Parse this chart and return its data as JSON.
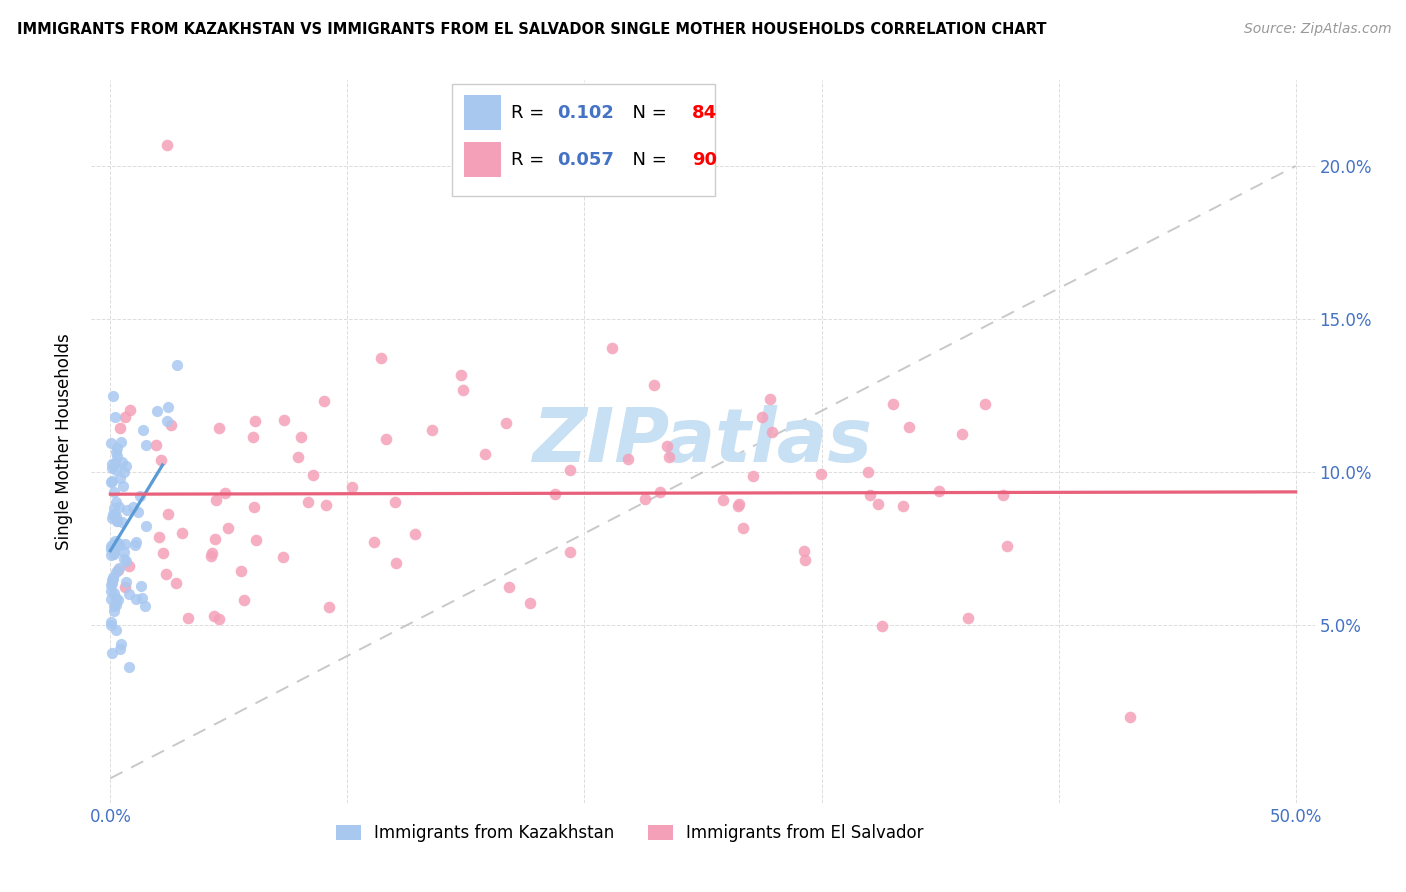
{
  "title": "IMMIGRANTS FROM KAZAKHSTAN VS IMMIGRANTS FROM EL SALVADOR SINGLE MOTHER HOUSEHOLDS CORRELATION CHART",
  "source": "Source: ZipAtlas.com",
  "ylabel": "Single Mother Households",
  "color_kaz": "#A8C8F0",
  "color_sal": "#F4A0B8",
  "color_kaz_line": "#5B9BD5",
  "color_sal_line": "#E8607A",
  "color_diag": "#BBBBBB",
  "color_tick": "#4472C4",
  "color_grid": "#DDDDDD",
  "watermark": "ZIPatlas",
  "watermark_color": "#C8E0F4",
  "r_kaz": 0.102,
  "n_kaz": 84,
  "r_sal": 0.057,
  "n_sal": 90,
  "y_ticks": [
    0.05,
    0.1,
    0.15,
    0.2
  ],
  "y_tick_labels": [
    "5.0%",
    "10.0%",
    "15.0%",
    "20.0%"
  ],
  "legend_label_kaz": "Immigrants from Kazakhstan",
  "legend_label_sal": "Immigrants from El Salvador",
  "legend_r_color": "#4472C4",
  "legend_n_color": "#FF0000"
}
